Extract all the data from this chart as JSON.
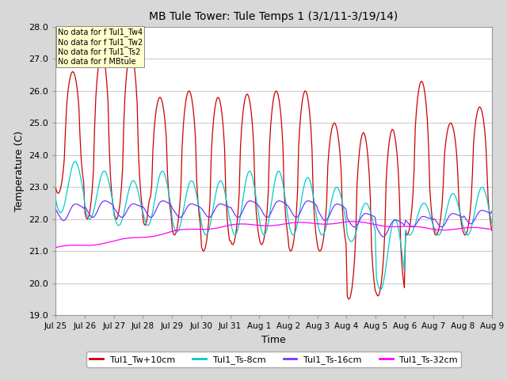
{
  "title": "MB Tule Tower: Tule Temps 1 (3/1/11-3/19/14)",
  "xlabel": "Time",
  "ylabel": "Temperature (C)",
  "ylim": [
    19.0,
    28.0
  ],
  "yticks": [
    19.0,
    20.0,
    21.0,
    22.0,
    23.0,
    24.0,
    25.0,
    26.0,
    27.0,
    28.0
  ],
  "xtick_labels": [
    "Jul 25",
    "Jul 26",
    "Jul 27",
    "Jul 28",
    "Jul 29",
    "Jul 30",
    "Jul 31",
    "Aug 1",
    "Aug 2",
    "Aug 3",
    "Aug 4",
    "Aug 5",
    "Aug 6",
    "Aug 7",
    "Aug 8",
    "Aug 9"
  ],
  "colors": {
    "Tw": "#cc0000",
    "Ts8": "#00cccc",
    "Ts16": "#7733ff",
    "Ts32": "#ff00ff"
  },
  "legend_entries": [
    {
      "label": "Tul1_Tw+10cm",
      "color": "#cc0000"
    },
    {
      "label": "Tul1_Ts-8cm",
      "color": "#00cccc"
    },
    {
      "label": "Tul1_Ts-16cm",
      "color": "#7733ff"
    },
    {
      "label": "Tul1_Ts-32cm",
      "color": "#ff00ff"
    }
  ],
  "no_data_texts": [
    "No data for f Tul1_Tw4",
    "No data for f Tul1_Tw2",
    "No data for f Tul1_Ts2",
    "No data for f MBtule"
  ],
  "background_color": "#d8d8d8",
  "plot_bg_color": "#ffffff",
  "grid_color": "#cccccc"
}
